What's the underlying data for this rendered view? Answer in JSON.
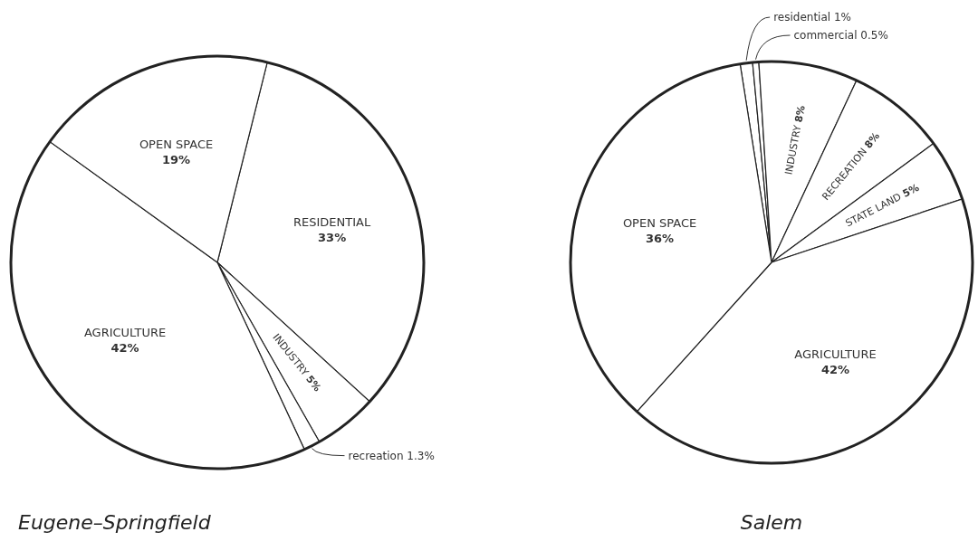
{
  "chart_data": [
    {
      "type": "pie",
      "title": "Eugene–Springfield",
      "categories": [
        "RESIDENTIAL",
        "INDUSTRY",
        "recreation",
        "AGRICULTURE",
        "OPEN SPACE"
      ],
      "values": [
        33,
        5,
        1.3,
        42,
        19
      ],
      "value_labels": [
        "33%",
        "5%",
        "1.3%",
        "42%",
        "19%"
      ],
      "colors": [
        "#ffffff",
        "#ffffff",
        "#ffffff",
        "#ffffff",
        "#ffffff"
      ]
    },
    {
      "type": "pie",
      "title": "Salem",
      "categories": [
        "residential",
        "commercial",
        "INDUSTRY",
        "RECREATION",
        "STATE LAND",
        "AGRICULTURE",
        "OPEN SPACE"
      ],
      "values": [
        1,
        0.5,
        8,
        8,
        5,
        42,
        36
      ],
      "value_labels": [
        "1%",
        "0.5%",
        "8%",
        "8%",
        "5%",
        "42%",
        "36%"
      ],
      "colors": [
        "#ffffff",
        "#ffffff",
        "#ffffff",
        "#ffffff",
        "#ffffff",
        "#ffffff",
        "#ffffff"
      ]
    }
  ]
}
